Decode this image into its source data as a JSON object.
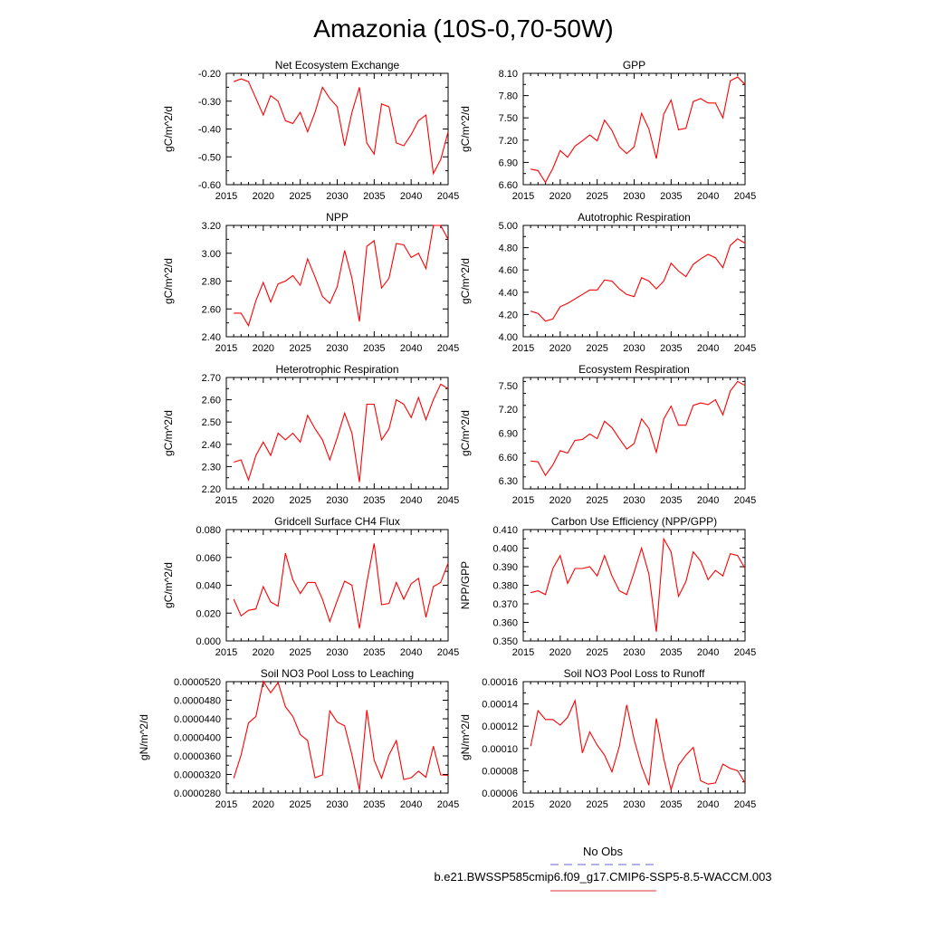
{
  "figure": {
    "title": "Amazonia (10S-0,70-50W)",
    "legend": {
      "obs_label": "No Obs",
      "model_label": "b.e21.BWSSP585cmip6.f09_g17.CMIP6-SSP5-8.5-WACCM.003",
      "obs_color": "#6666cc",
      "model_color": "#e03030"
    },
    "line_color": "#ff0000"
  },
  "chart_data": [
    {
      "type": "line",
      "title": "Net Ecosystem Exchange",
      "ylabel": "gC/m^2/d",
      "xlim": [
        2015,
        2045
      ],
      "ylim": [
        -0.6,
        -0.2
      ],
      "xticks": [
        "2015",
        "2020",
        "2025",
        "2030",
        "2035",
        "2040",
        "2045"
      ],
      "yticks": [
        "-0.60",
        "-0.50",
        "-0.40",
        "-0.30",
        "-0.20"
      ],
      "x": [
        2016,
        2017,
        2018,
        2019,
        2020,
        2021,
        2022,
        2023,
        2024,
        2025,
        2026,
        2027,
        2028,
        2029,
        2030,
        2031,
        2032,
        2033,
        2034,
        2035,
        2036,
        2037,
        2038,
        2039,
        2040,
        2041,
        2042,
        2043,
        2044,
        2045
      ],
      "values": [
        -0.23,
        -0.22,
        -0.23,
        -0.29,
        -0.35,
        -0.28,
        -0.3,
        -0.37,
        -0.38,
        -0.34,
        -0.41,
        -0.34,
        -0.25,
        -0.29,
        -0.32,
        -0.46,
        -0.34,
        -0.25,
        -0.45,
        -0.49,
        -0.31,
        -0.32,
        -0.45,
        -0.46,
        -0.42,
        -0.37,
        -0.35,
        -0.56,
        -0.51,
        -0.41
      ]
    },
    {
      "type": "line",
      "title": "GPP",
      "ylabel": "gC/m^2/d",
      "xlim": [
        2015,
        2045
      ],
      "ylim": [
        6.6,
        8.1
      ],
      "xticks": [
        "2015",
        "2020",
        "2025",
        "2030",
        "2035",
        "2040",
        "2045"
      ],
      "yticks": [
        "6.60",
        "6.90",
        "7.20",
        "7.50",
        "7.80",
        "8.10"
      ],
      "x": [
        2016,
        2017,
        2018,
        2019,
        2020,
        2021,
        2022,
        2023,
        2024,
        2025,
        2026,
        2027,
        2028,
        2029,
        2030,
        2031,
        2032,
        2033,
        2034,
        2035,
        2036,
        2037,
        2038,
        2039,
        2040,
        2041,
        2042,
        2043,
        2044,
        2045
      ],
      "values": [
        6.81,
        6.79,
        6.63,
        6.82,
        7.06,
        6.97,
        7.12,
        7.19,
        7.27,
        7.19,
        7.47,
        7.33,
        7.11,
        7.02,
        7.11,
        7.56,
        7.35,
        6.95,
        7.55,
        7.74,
        7.34,
        7.36,
        7.72,
        7.76,
        7.7,
        7.7,
        7.5,
        8.0,
        8.05,
        7.95
      ]
    },
    {
      "type": "line",
      "title": "NPP",
      "ylabel": "gC/m^2/d",
      "xlim": [
        2015,
        2045
      ],
      "ylim": [
        2.4,
        3.2
      ],
      "xticks": [
        "2015",
        "2020",
        "2025",
        "2030",
        "2035",
        "2040",
        "2045"
      ],
      "yticks": [
        "2.40",
        "2.60",
        "2.80",
        "3.00",
        "3.20"
      ],
      "x": [
        2016,
        2017,
        2018,
        2019,
        2020,
        2021,
        2022,
        2023,
        2024,
        2025,
        2026,
        2027,
        2028,
        2029,
        2030,
        2031,
        2032,
        2033,
        2034,
        2035,
        2036,
        2037,
        2038,
        2039,
        2040,
        2041,
        2042,
        2043,
        2044,
        2045
      ],
      "values": [
        2.57,
        2.57,
        2.48,
        2.66,
        2.79,
        2.65,
        2.78,
        2.8,
        2.84,
        2.77,
        2.96,
        2.83,
        2.69,
        2.64,
        2.76,
        3.02,
        2.82,
        2.51,
        3.05,
        3.09,
        2.75,
        2.82,
        3.07,
        3.06,
        2.97,
        3.0,
        2.89,
        3.2,
        3.2,
        3.1
      ]
    },
    {
      "type": "line",
      "title": "Autotrophic Respiration",
      "ylabel": "gC/m^2/d",
      "xlim": [
        2015,
        2045
      ],
      "ylim": [
        4.0,
        5.0
      ],
      "xticks": [
        "2015",
        "2020",
        "2025",
        "2030",
        "2035",
        "2040",
        "2045"
      ],
      "yticks": [
        "4.00",
        "4.20",
        "4.40",
        "4.60",
        "4.80",
        "5.00"
      ],
      "x": [
        2016,
        2017,
        2018,
        2019,
        2020,
        2021,
        2022,
        2023,
        2024,
        2025,
        2026,
        2027,
        2028,
        2029,
        2030,
        2031,
        2032,
        2033,
        2034,
        2035,
        2036,
        2037,
        2038,
        2039,
        2040,
        2041,
        2042,
        2043,
        2044,
        2045
      ],
      "values": [
        4.23,
        4.21,
        4.14,
        4.16,
        4.27,
        4.3,
        4.34,
        4.38,
        4.42,
        4.42,
        4.51,
        4.5,
        4.43,
        4.38,
        4.36,
        4.53,
        4.5,
        4.43,
        4.5,
        4.66,
        4.59,
        4.54,
        4.65,
        4.7,
        4.74,
        4.71,
        4.62,
        4.82,
        4.88,
        4.84
      ]
    },
    {
      "type": "line",
      "title": "Heterotrophic Respiration",
      "ylabel": "gC/m^2/d",
      "xlim": [
        2015,
        2045
      ],
      "ylim": [
        2.2,
        2.7
      ],
      "xticks": [
        "2015",
        "2020",
        "2025",
        "2030",
        "2035",
        "2040",
        "2045"
      ],
      "yticks": [
        "2.20",
        "2.30",
        "2.40",
        "2.50",
        "2.60",
        "2.70"
      ],
      "x": [
        2016,
        2017,
        2018,
        2019,
        2020,
        2021,
        2022,
        2023,
        2024,
        2025,
        2026,
        2027,
        2028,
        2029,
        2030,
        2031,
        2032,
        2033,
        2034,
        2035,
        2036,
        2037,
        2038,
        2039,
        2040,
        2041,
        2042,
        2043,
        2044,
        2045
      ],
      "values": [
        2.32,
        2.33,
        2.24,
        2.35,
        2.41,
        2.35,
        2.45,
        2.42,
        2.45,
        2.41,
        2.53,
        2.47,
        2.42,
        2.33,
        2.43,
        2.54,
        2.45,
        2.23,
        2.58,
        2.58,
        2.42,
        2.47,
        2.6,
        2.58,
        2.52,
        2.61,
        2.51,
        2.6,
        2.67,
        2.65
      ]
    },
    {
      "type": "line",
      "title": "Ecosystem Respiration",
      "ylabel": "gC/m^2/d",
      "xlim": [
        2015,
        2045
      ],
      "ylim": [
        6.2,
        7.6
      ],
      "xticks": [
        "2015",
        "2020",
        "2025",
        "2030",
        "2035",
        "2040",
        "2045"
      ],
      "yticks": [
        "6.30",
        "6.60",
        "6.90",
        "7.20",
        "7.50"
      ],
      "x": [
        2016,
        2017,
        2018,
        2019,
        2020,
        2021,
        2022,
        2023,
        2024,
        2025,
        2026,
        2027,
        2028,
        2029,
        2030,
        2031,
        2032,
        2033,
        2034,
        2035,
        2036,
        2037,
        2038,
        2039,
        2040,
        2041,
        2042,
        2043,
        2044,
        2045
      ],
      "values": [
        6.55,
        6.54,
        6.37,
        6.5,
        6.68,
        6.65,
        6.81,
        6.82,
        6.89,
        6.83,
        7.05,
        6.97,
        6.83,
        6.7,
        6.77,
        7.08,
        6.96,
        6.66,
        7.08,
        7.24,
        7.0,
        7.0,
        7.25,
        7.28,
        7.26,
        7.32,
        7.13,
        7.43,
        7.55,
        7.5
      ]
    },
    {
      "type": "line",
      "title": "Gridcell Surface CH4 Flux",
      "ylabel": "gC/m^2/d",
      "xlim": [
        2015,
        2045
      ],
      "ylim": [
        0.0,
        0.08
      ],
      "xticks": [
        "2015",
        "2020",
        "2025",
        "2030",
        "2035",
        "2040",
        "2045"
      ],
      "yticks": [
        "0.000",
        "0.020",
        "0.040",
        "0.060",
        "0.080"
      ],
      "x": [
        2016,
        2017,
        2018,
        2019,
        2020,
        2021,
        2022,
        2023,
        2024,
        2025,
        2026,
        2027,
        2028,
        2029,
        2030,
        2031,
        2032,
        2033,
        2034,
        2035,
        2036,
        2037,
        2038,
        2039,
        2040,
        2041,
        2042,
        2043,
        2044,
        2045
      ],
      "values": [
        0.03,
        0.018,
        0.022,
        0.023,
        0.039,
        0.028,
        0.025,
        0.063,
        0.044,
        0.034,
        0.042,
        0.042,
        0.03,
        0.014,
        0.029,
        0.043,
        0.04,
        0.009,
        0.042,
        0.07,
        0.026,
        0.027,
        0.042,
        0.03,
        0.041,
        0.045,
        0.017,
        0.039,
        0.042,
        0.056
      ]
    },
    {
      "type": "line",
      "title": "Carbon Use Efficiency (NPP/GPP)",
      "ylabel": "NPP/GPP",
      "xlim": [
        2015,
        2045
      ],
      "ylim": [
        0.35,
        0.41
      ],
      "xticks": [
        "2015",
        "2020",
        "2025",
        "2030",
        "2035",
        "2040",
        "2045"
      ],
      "yticks": [
        "0.350",
        "0.360",
        "0.370",
        "0.380",
        "0.390",
        "0.400",
        "0.410"
      ],
      "x": [
        2016,
        2017,
        2018,
        2019,
        2020,
        2021,
        2022,
        2023,
        2024,
        2025,
        2026,
        2027,
        2028,
        2029,
        2030,
        2031,
        2032,
        2033,
        2034,
        2035,
        2036,
        2037,
        2038,
        2039,
        2040,
        2041,
        2042,
        2043,
        2044,
        2045
      ],
      "values": [
        0.376,
        0.377,
        0.375,
        0.389,
        0.396,
        0.381,
        0.389,
        0.389,
        0.39,
        0.385,
        0.396,
        0.385,
        0.377,
        0.375,
        0.387,
        0.4,
        0.386,
        0.355,
        0.405,
        0.398,
        0.374,
        0.382,
        0.398,
        0.393,
        0.383,
        0.388,
        0.385,
        0.397,
        0.396,
        0.389
      ]
    },
    {
      "type": "line",
      "title": "Soil NO3 Pool Loss to Leaching",
      "ylabel": "gN/m^2/d",
      "xlim": [
        2015,
        2045
      ],
      "ylim": [
        2.8e-05,
        5.2e-05
      ],
      "xticks": [
        "2015",
        "2020",
        "2025",
        "2030",
        "2035",
        "2040",
        "2045"
      ],
      "yticks": [
        "0.0000280",
        "0.0000320",
        "0.0000360",
        "0.0000400",
        "0.0000440",
        "0.0000480",
        "0.0000520"
      ],
      "x": [
        2016,
        2017,
        2018,
        2019,
        2020,
        2021,
        2022,
        2023,
        2024,
        2025,
        2026,
        2027,
        2028,
        2029,
        2030,
        2031,
        2032,
        2033,
        2034,
        2035,
        2036,
        2037,
        2038,
        2039,
        2040,
        2041,
        2042,
        2043,
        2044,
        2045
      ],
      "values": [
        3.12e-05,
        3.62e-05,
        4.31e-05,
        4.45e-05,
        5.21e-05,
        4.96e-05,
        5.18e-05,
        4.66e-05,
        4.45e-05,
        4.06e-05,
        3.93e-05,
        3.13e-05,
        3.19e-05,
        4.57e-05,
        4.33e-05,
        4.25e-05,
        3.62e-05,
        2.86e-05,
        4.59e-05,
        3.51e-05,
        3.12e-05,
        3.62e-05,
        3.93e-05,
        3.09e-05,
        3.13e-05,
        3.27e-05,
        3.14e-05,
        3.81e-05,
        3.19e-05,
        3.18e-05
      ]
    },
    {
      "type": "line",
      "title": "Soil NO3 Pool Loss to Runoff",
      "ylabel": "gN/m^2/d",
      "xlim": [
        2015,
        2045
      ],
      "ylim": [
        6e-05,
        0.00016
      ],
      "xticks": [
        "2015",
        "2020",
        "2025",
        "2030",
        "2035",
        "2040",
        "2045"
      ],
      "yticks": [
        "0.00006",
        "0.00008",
        "0.00010",
        "0.00012",
        "0.00014",
        "0.00016"
      ],
      "x": [
        2016,
        2017,
        2018,
        2019,
        2020,
        2021,
        2022,
        2023,
        2024,
        2025,
        2026,
        2027,
        2028,
        2029,
        2030,
        2031,
        2032,
        2033,
        2034,
        2035,
        2036,
        2037,
        2038,
        2039,
        2040,
        2041,
        2042,
        2043,
        2044,
        2045
      ],
      "values": [
        0.000102,
        0.000134,
        0.000126,
        0.000126,
        0.000121,
        0.000128,
        0.000143,
        9.6e-05,
        0.000115,
        0.000103,
        9.4e-05,
        7.9e-05,
        0.000102,
        0.000139,
        0.000108,
        8.4e-05,
        6.7e-05,
        0.000127,
        9.1e-05,
        6.3e-05,
        8.5e-05,
        9.4e-05,
        0.000101,
        7.1e-05,
        6.8e-05,
        6.9e-05,
        8.6e-05,
        8.2e-05,
        8e-05,
        6.9e-05
      ]
    }
  ]
}
